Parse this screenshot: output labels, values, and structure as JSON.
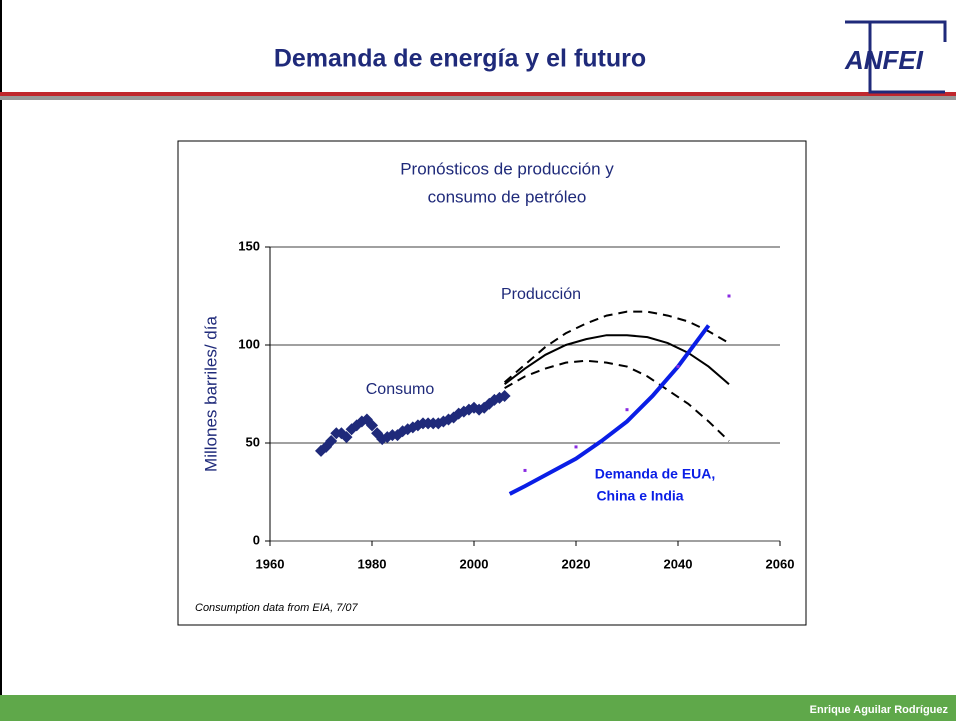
{
  "header": {
    "title": "Demanda de energía y el futuro",
    "logo": "ANFEI"
  },
  "footer": {
    "author": "Enrique Aguilar Rodríguez"
  },
  "chart_data": {
    "type": "line",
    "title": [
      "Pronósticos de producción y",
      "consumo de petróleo"
    ],
    "y_label": "Millones barriles/ día",
    "note": "Consumption data from EIA, 7/07",
    "xlim": [
      1960,
      2060
    ],
    "xticks": [
      1960,
      1980,
      2000,
      2020,
      2040,
      2060
    ],
    "ylim": [
      0,
      150
    ],
    "yticks": [
      0,
      50,
      100,
      150
    ],
    "grid": true,
    "annotations": [
      "Producción",
      "Consumo",
      "Demanda de EUA,",
      "China e India"
    ],
    "series": [
      {
        "color": "#1f2a7a",
        "line": false,
        "marker": "diamond",
        "x": [
          1970,
          1971,
          1972,
          1973,
          1974,
          1975,
          1976,
          1977,
          1978,
          1979,
          1980,
          1981,
          1982,
          1983,
          1984,
          1985,
          1986,
          1987,
          1988,
          1989,
          1990,
          1991,
          1992,
          1993,
          1994,
          1995,
          1996,
          1997,
          1998,
          1999,
          2000,
          2001,
          2002,
          2003,
          2004,
          2005,
          2006
        ],
        "values": [
          46,
          48,
          51,
          55,
          55,
          53,
          57,
          59,
          61,
          62,
          59,
          55,
          52,
          53,
          54,
          54,
          56,
          57,
          58,
          59,
          60,
          60,
          60,
          60,
          61,
          62,
          63,
          65,
          66,
          67,
          68,
          67,
          68,
          70,
          72,
          73,
          74
        ]
      },
      {
        "color": "#000000",
        "line": true,
        "dash": false,
        "x": [
          2006,
          2010,
          2014,
          2018,
          2022,
          2026,
          2030,
          2034,
          2038,
          2042,
          2046,
          2050
        ],
        "values": [
          80,
          88,
          95,
          100,
          103,
          105,
          105,
          104,
          101,
          96,
          89,
          80
        ]
      },
      {
        "color": "#000000",
        "line": true,
        "dash": true,
        "x": [
          2006,
          2010,
          2014,
          2018,
          2022,
          2026,
          2030,
          2034,
          2038,
          2042,
          2046,
          2050
        ],
        "values": [
          81,
          90,
          99,
          106,
          111,
          115,
          117,
          117,
          115,
          112,
          107,
          101
        ]
      },
      {
        "color": "#000000",
        "line": true,
        "dash": true,
        "x": [
          2006,
          2010,
          2014,
          2018,
          2022,
          2026,
          2030,
          2034,
          2038,
          2042,
          2046,
          2050
        ],
        "values": [
          78,
          84,
          88,
          91,
          92,
          91,
          89,
          84,
          77,
          70,
          61,
          51
        ]
      },
      {
        "color": "#0a1ee6",
        "line": true,
        "dash": false,
        "width": 4,
        "x": [
          2007,
          2010,
          2015,
          2020,
          2025,
          2030,
          2035,
          2040,
          2046
        ],
        "values": [
          24,
          28,
          35,
          42,
          51,
          61,
          74,
          89,
          110
        ]
      },
      {
        "color": "#8a2be2",
        "line": false,
        "marker": "dot",
        "x": [
          2010,
          2020,
          2030,
          2040,
          2050
        ],
        "values": [
          36,
          48,
          67,
          89,
          125
        ]
      }
    ]
  }
}
